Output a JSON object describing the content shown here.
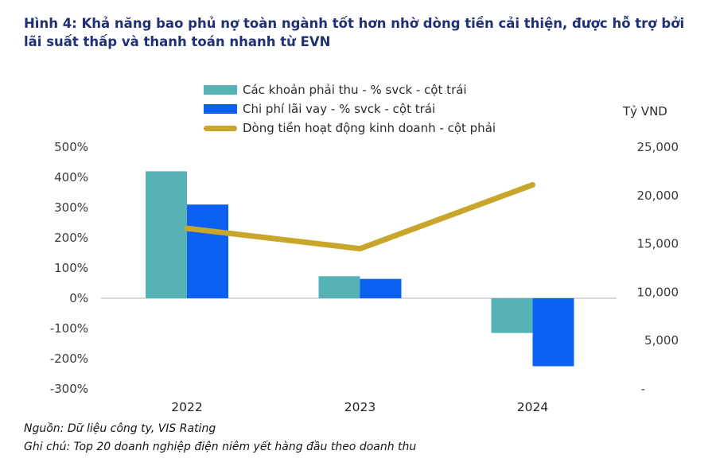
{
  "header": {
    "title": "Hình 4: Khả năng bao phủ nợ toàn ngành tốt hơn nhờ dòng tiền cải thiện, được hỗ trợ bởi lãi suất thấp và thanh toán nhanh từ EVN",
    "title_color": "#1f3173"
  },
  "chart_data": {
    "type": "combo-bar-line",
    "categories": [
      "2022",
      "2023",
      "2024"
    ],
    "series": [
      {
        "name": "Các khoản phải thu - % svck - cột trái",
        "type": "bar",
        "axis": "left",
        "color": "#57b2b5",
        "values": [
          420,
          73,
          -115
        ]
      },
      {
        "name": "Chi phí lãi vay  - % svck - cột trái",
        "type": "bar",
        "axis": "left",
        "color": "#0d61f2",
        "values": [
          310,
          64,
          -225
        ]
      },
      {
        "name": "Dòng tiền hoạt động kinh doanh - cột phải",
        "type": "line",
        "axis": "right",
        "color": "#c7a62b",
        "values": [
          16600,
          14500,
          21100
        ]
      }
    ],
    "left_axis": {
      "min": -300,
      "max": 500,
      "ticks": [
        {
          "label": "500%",
          "value": 500
        },
        {
          "label": "400%",
          "value": 400
        },
        {
          "label": "300%",
          "value": 300
        },
        {
          "label": "200%",
          "value": 200
        },
        {
          "label": "100%",
          "value": 100
        },
        {
          "label": "0%",
          "value": 0
        },
        {
          "label": "-100%",
          "value": -100
        },
        {
          "label": "-200%",
          "value": -200
        },
        {
          "label": "-300%",
          "value": -300
        }
      ]
    },
    "right_axis": {
      "title": "Tỷ VND",
      "min": 0,
      "max": 25000,
      "ticks": [
        {
          "label": "25,000",
          "value": 25000
        },
        {
          "label": "20,000",
          "value": 20000
        },
        {
          "label": "15,000",
          "value": 15000
        },
        {
          "label": "10,000",
          "value": 10000
        },
        {
          "label": "5,000",
          "value": 5000
        },
        {
          "label": "-",
          "value": 0
        }
      ]
    },
    "gridlines": "zero-line-only",
    "zero_line_color": "#d9d9d9",
    "legend_position": "top-center"
  },
  "footnotes": {
    "source": "Nguồn: Dữ liệu công ty, VIS Rating",
    "note": "Ghi chú: Top 20 doanh nghiệp điện niêm yết hàng đầu theo doanh thu"
  }
}
